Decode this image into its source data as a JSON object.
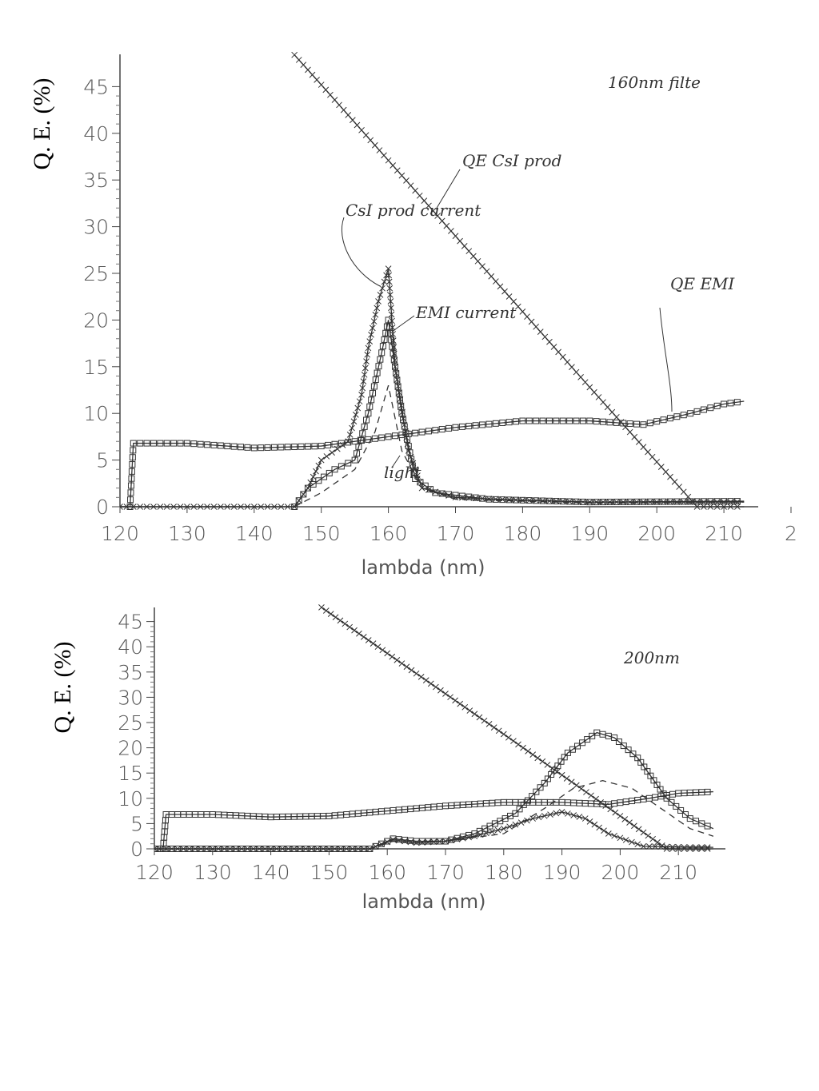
{
  "chart_data": [
    {
      "type": "line",
      "title": "",
      "xlabel": "lambda (nm)",
      "ylabel": "Q. E. (%)",
      "xlim": [
        120,
        213
      ],
      "ylim": [
        0,
        45
      ],
      "xticks": [
        "120",
        "130",
        "140",
        "150",
        "160",
        "170",
        "180",
        "190",
        "200",
        "210",
        "2"
      ],
      "yticks": [
        "0",
        "5",
        "10",
        "15",
        "20",
        "25",
        "30",
        "35",
        "40",
        "45"
      ],
      "grid": false,
      "annotations": [
        "160nm filte",
        "QE CsI prod",
        "CsI prod current",
        "EMI current",
        "QE EMI",
        "light"
      ],
      "series": [
        {
          "name": "QE CsI prod",
          "marker": "x",
          "x": [
            146,
            150,
            160,
            170,
            180,
            190,
            200,
            206,
            213
          ],
          "y": [
            48.4,
            45.2,
            37.1,
            29,
            20.9,
            12.8,
            4.8,
            0,
            0
          ]
        },
        {
          "name": "QE EMI",
          "marker": "square",
          "x": [
            120,
            121.5,
            122,
            130,
            140,
            150,
            160,
            170,
            180,
            190,
            198,
            205,
            210,
            213
          ],
          "y": [
            0,
            0,
            6.8,
            6.8,
            6.3,
            6.5,
            7.5,
            8.5,
            9.2,
            9.2,
            8.8,
            10,
            11,
            11.3
          ]
        },
        {
          "name": "CsI prod current",
          "marker": "x",
          "x": [
            120,
            146,
            148,
            150,
            154,
            156,
            157,
            158.5,
            160,
            161,
            163,
            165,
            170,
            180,
            190,
            213
          ],
          "y": [
            0,
            0,
            2,
            5,
            7,
            12,
            17,
            22,
            25.5,
            15,
            6,
            2,
            1,
            0.7,
            0.5,
            0.5
          ]
        },
        {
          "name": "EMI current",
          "marker": "square",
          "x": [
            120,
            146,
            148,
            152,
            155,
            157,
            159,
            160,
            162,
            164,
            167,
            175,
            190,
            213
          ],
          "y": [
            0,
            0,
            2,
            4,
            5,
            10,
            16.5,
            20,
            10,
            3,
            1.5,
            0.8,
            0.5,
            0.6
          ]
        },
        {
          "name": "light",
          "marker": "dashed",
          "x": [
            146,
            150,
            155,
            158,
            160,
            162,
            165,
            170,
            190,
            213
          ],
          "y": [
            0,
            1.5,
            4,
            8,
            13,
            6,
            2,
            0.8,
            0.4,
            0.5
          ]
        }
      ]
    },
    {
      "type": "line",
      "title": "",
      "xlabel": "lambda (nm)",
      "ylabel": "Q. E. (%)",
      "xlim": [
        120,
        216
      ],
      "ylim": [
        0,
        45
      ],
      "xticks": [
        "120",
        "130",
        "140",
        "150",
        "160",
        "170",
        "180",
        "190",
        "200",
        "210"
      ],
      "yticks": [
        "0",
        "5",
        "10",
        "15",
        "20",
        "25",
        "30",
        "35",
        "40",
        "45"
      ],
      "grid": false,
      "annotations": [
        "200nm"
      ],
      "series": [
        {
          "name": "QE CsI prod",
          "marker": "x",
          "x": [
            148.7,
            160,
            170,
            180,
            190,
            200,
            208,
            216
          ],
          "y": [
            47.8,
            38.7,
            30.7,
            22.7,
            14.6,
            6.5,
            0,
            0
          ]
        },
        {
          "name": "QE EMI",
          "marker": "square",
          "x": [
            120,
            121.5,
            122,
            130,
            140,
            150,
            160,
            170,
            180,
            190,
            198,
            205,
            210,
            216
          ],
          "y": [
            0,
            0,
            6.8,
            6.8,
            6.3,
            6.5,
            7.5,
            8.5,
            9.2,
            9.2,
            8.8,
            10,
            11,
            11.3
          ]
        },
        {
          "name": "EMI current",
          "marker": "square",
          "x": [
            120,
            157,
            161,
            165,
            170,
            175,
            182,
            187,
            191,
            196,
            199,
            203,
            208,
            212,
            216
          ],
          "y": [
            0,
            0,
            2,
            1.5,
            1.5,
            3,
            7,
            13,
            19,
            23,
            22,
            18,
            10,
            6,
            4
          ]
        },
        {
          "name": "CsI prod current",
          "marker": "x",
          "x": [
            120,
            157,
            161,
            165,
            170,
            175,
            180,
            185,
            190,
            194,
            198,
            204,
            212,
            216
          ],
          "y": [
            0,
            0,
            1.8,
            1.2,
            1.5,
            2.5,
            4,
            6,
            7.3,
            6,
            3,
            0.5,
            0.3,
            0.3
          ]
        },
        {
          "name": "light",
          "marker": "dashed",
          "x": [
            157,
            161,
            170,
            180,
            187,
            192,
            197,
            202,
            207,
            212,
            216
          ],
          "y": [
            0,
            1.5,
            1.5,
            3,
            8,
            12,
            13.5,
            12,
            8,
            4,
            2.5
          ]
        }
      ]
    }
  ]
}
